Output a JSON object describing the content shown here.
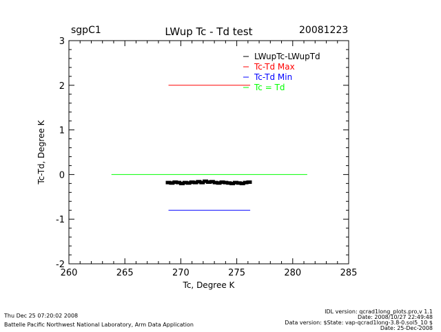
{
  "header": {
    "site": "sgpC1",
    "date": "20081223"
  },
  "chart_data": {
    "type": "scatter",
    "title": "LWup Tc - Td test",
    "xlabel": "Tc, Degree K",
    "ylabel": "Tc-Td, Degree K",
    "xlim": [
      260,
      285
    ],
    "ylim": [
      -2,
      3
    ],
    "x_ticks": [
      260,
      265,
      270,
      275,
      280,
      285
    ],
    "y_ticks": [
      -2,
      -1,
      0,
      1,
      2,
      3
    ],
    "x_tick_labels": [
      "260",
      "265",
      "270",
      "275",
      "280",
      "285"
    ],
    "y_tick_labels": [
      "-2",
      "-1",
      "0",
      "1",
      "2",
      "3"
    ],
    "legend_position": "top-right",
    "series": [
      {
        "name": "LWupTc-LWupTd",
        "color": "#000000",
        "style": "points",
        "x": [
          268.9,
          269.2,
          269.5,
          269.8,
          270.1,
          270.4,
          270.7,
          271.0,
          271.3,
          271.6,
          271.9,
          272.2,
          272.5,
          272.8,
          273.1,
          273.4,
          273.7,
          274.0,
          274.3,
          274.6,
          274.9,
          275.2,
          275.5,
          275.8,
          276.1
        ],
        "y": [
          -0.18,
          -0.19,
          -0.17,
          -0.18,
          -0.2,
          -0.18,
          -0.19,
          -0.17,
          -0.18,
          -0.16,
          -0.18,
          -0.15,
          -0.17,
          -0.16,
          -0.18,
          -0.19,
          -0.17,
          -0.18,
          -0.19,
          -0.2,
          -0.18,
          -0.19,
          -0.2,
          -0.18,
          -0.17
        ]
      },
      {
        "name": "Tc-Td Max",
        "color": "#ff0000",
        "style": "line",
        "x": [
          268.9,
          276.2
        ],
        "y": [
          2.0,
          2.0
        ]
      },
      {
        "name": "Tc-Td Min",
        "color": "#0000ff",
        "style": "line",
        "x": [
          268.9,
          276.2
        ],
        "y": [
          -0.8,
          -0.8
        ]
      },
      {
        "name": "Tc = Td",
        "color": "#00ff00",
        "style": "line",
        "x": [
          263.8,
          281.3
        ],
        "y": [
          0.0,
          0.0
        ]
      }
    ]
  },
  "footer": {
    "left_line1": "Thu Dec 25 07:20:02 2008",
    "left_line2": "Battelle Pacific Northwest National Laboratory, Arm Data Application",
    "right_line1": "IDL version: qcrad1long_plots.pro,v 1.1",
    "right_line2": "Date: 2008/10/27 22:49:48",
    "right_line3": "Data version: $State: vap-qcrad1long-3.8-0.sol5_10 $",
    "right_line4": "Date: 25-Dec-2008"
  }
}
